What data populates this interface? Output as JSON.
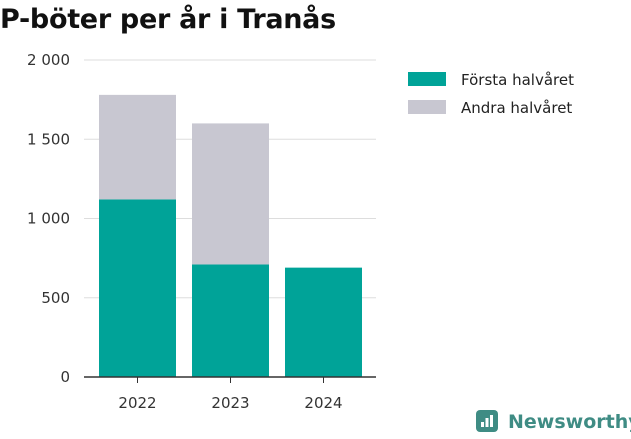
{
  "chart_data": {
    "type": "bar",
    "stacked": true,
    "title": "P-böter per år i Tranås",
    "categories": [
      "2022",
      "2023",
      "2024"
    ],
    "series": [
      {
        "name": "Första halvåret",
        "color": "#00a398",
        "values": [
          1120,
          710,
          690
        ]
      },
      {
        "name": "Andra halvåret",
        "color": "#c8c7d1",
        "values": [
          660,
          890,
          0
        ]
      }
    ],
    "ylim": [
      0,
      2000
    ],
    "yticks": [
      0,
      500,
      1000,
      1500,
      2000
    ],
    "ytick_labels": [
      "0",
      "500",
      "1 000",
      "1 500",
      "2 000"
    ],
    "grid": true,
    "legend_position": "right"
  },
  "brand": {
    "name": "Newsworthy",
    "icon": "newsworthy-logo-icon",
    "color": "#3f8c84"
  }
}
